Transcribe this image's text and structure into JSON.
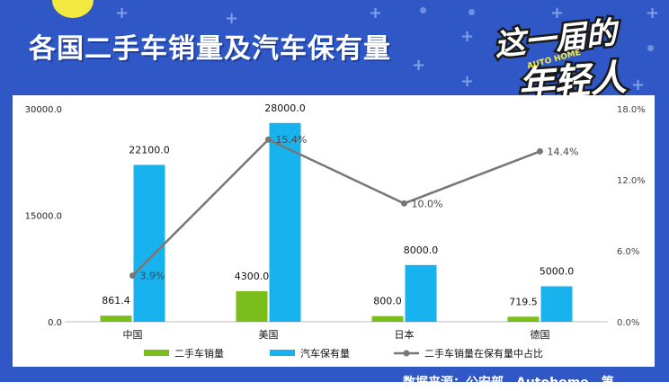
{
  "header": {
    "title": "各国二手车销量及汽车保有量",
    "logo": {
      "line1": "这一届的",
      "line2": "年轻人",
      "badge": "AUTO HOME"
    }
  },
  "footer": {
    "text": "数据来源：公安部、Autohome、第"
  },
  "colors": {
    "background": "#2f58c6",
    "sales": "#7bbd1a",
    "ownership": "#18b3ef",
    "ratio": "#777777",
    "title": "#ffffff"
  },
  "chart_data": {
    "type": "bar",
    "categories": [
      "中国",
      "美国",
      "日本",
      "德国"
    ],
    "series": [
      {
        "name": "二手车销量",
        "type": "bar",
        "axis": "left",
        "values": [
          861.4,
          4300.0,
          800.0,
          719.5
        ],
        "labels": [
          "861.4",
          "4300.0",
          "800.0",
          "719.5"
        ]
      },
      {
        "name": "汽车保有量",
        "type": "bar",
        "axis": "left",
        "values": [
          22100.0,
          28000.0,
          8000.0,
          5000.0
        ],
        "labels": [
          "22100.0",
          "28000.0",
          "8000.0",
          "5000.0"
        ]
      },
      {
        "name": "二手车销量在保有量中占比",
        "type": "line",
        "axis": "right",
        "values": [
          3.9,
          15.4,
          10.0,
          14.4
        ],
        "labels": [
          "3.9%",
          "15.4%",
          "10.0%",
          "14.4%"
        ]
      }
    ],
    "y_left": {
      "min": 0,
      "max": 30000,
      "ticks": [
        0,
        15000,
        30000
      ],
      "tick_labels": [
        "0.0",
        "15000.0",
        "30000.0"
      ]
    },
    "y_right": {
      "min": 0,
      "max": 18,
      "ticks": [
        0,
        6,
        12,
        18
      ],
      "tick_labels": [
        "0.0%",
        "6.0%",
        "12.0%",
        "18.0%"
      ]
    },
    "legend": {
      "position": "bottom"
    },
    "grid": false
  }
}
